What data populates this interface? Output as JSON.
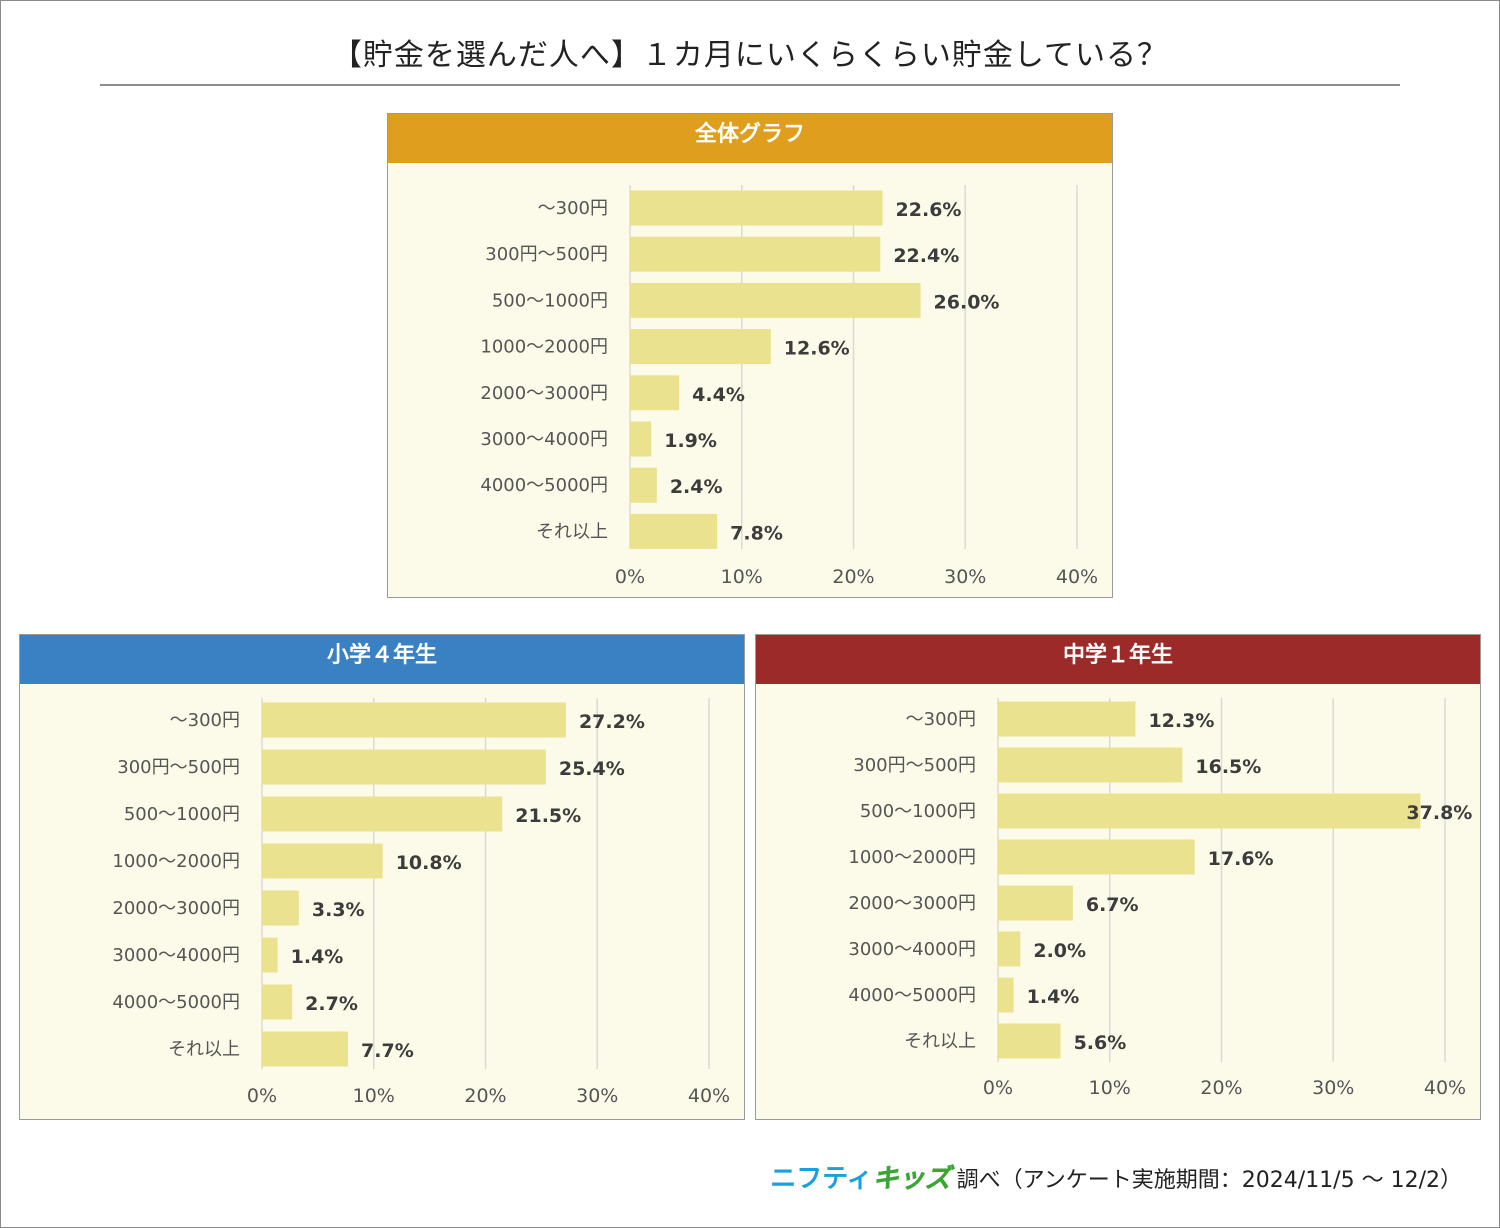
{
  "page": {
    "title": "【貯金を選んだ人へ】１カ月にいくらくらい貯金している？",
    "footer_logo_1": "ニフティ",
    "footer_logo_2": "キッズ",
    "footer_text": "調べ（アンケート実施期間：2024/11/5 ～ 12/2）"
  },
  "colors": {
    "bar": "#ebe28f",
    "panel_bg": "#fcfbea",
    "grid": "#d9d9d9",
    "header_all": "#e09e1f",
    "header_grade4": "#3a81c3",
    "header_grade7": "#9b2a29"
  },
  "chart_data": [
    {
      "type": "bar",
      "orientation": "horizontal",
      "title": "全体グラフ",
      "categories": [
        "～300円",
        "300円～500円",
        "500～1000円",
        "1000～2000円",
        "2000～3000円",
        "3000～4000円",
        "4000～5000円",
        "それ以上"
      ],
      "values": [
        22.6,
        22.4,
        26.0,
        12.6,
        4.4,
        1.9,
        2.4,
        7.8
      ],
      "labels": [
        "22.6%",
        "22.4%",
        "26.0%",
        "12.6%",
        "4.4%",
        "1.9%",
        "2.4%",
        "7.8%"
      ],
      "xticks": [
        "0%",
        "10%",
        "20%",
        "30%",
        "40%"
      ],
      "xlim": [
        0,
        40
      ],
      "grid": true
    },
    {
      "type": "bar",
      "orientation": "horizontal",
      "title": "小学４年生",
      "categories": [
        "～300円",
        "300円～500円",
        "500～1000円",
        "1000～2000円",
        "2000～3000円",
        "3000～4000円",
        "4000～5000円",
        "それ以上"
      ],
      "values": [
        27.2,
        25.4,
        21.5,
        10.8,
        3.3,
        1.4,
        2.7,
        7.7
      ],
      "labels": [
        "27.2%",
        "25.4%",
        "21.5%",
        "10.8%",
        "3.3%",
        "1.4%",
        "2.7%",
        "7.7%"
      ],
      "xticks": [
        "0%",
        "10%",
        "20%",
        "30%",
        "40%"
      ],
      "xlim": [
        0,
        40
      ],
      "grid": true
    },
    {
      "type": "bar",
      "orientation": "horizontal",
      "title": "中学１年生",
      "categories": [
        "～300円",
        "300円～500円",
        "500～1000円",
        "1000～2000円",
        "2000～3000円",
        "3000～4000円",
        "4000～5000円",
        "それ以上"
      ],
      "values": [
        12.3,
        16.5,
        37.8,
        17.6,
        6.7,
        2.0,
        1.4,
        5.6
      ],
      "labels": [
        "12.3%",
        "16.5%",
        "37.8%",
        "17.6%",
        "6.7%",
        "2.0%",
        "1.4%",
        "5.6%"
      ],
      "xticks": [
        "0%",
        "10%",
        "20%",
        "30%",
        "40%"
      ],
      "xlim": [
        0,
        40
      ],
      "grid": true
    }
  ]
}
